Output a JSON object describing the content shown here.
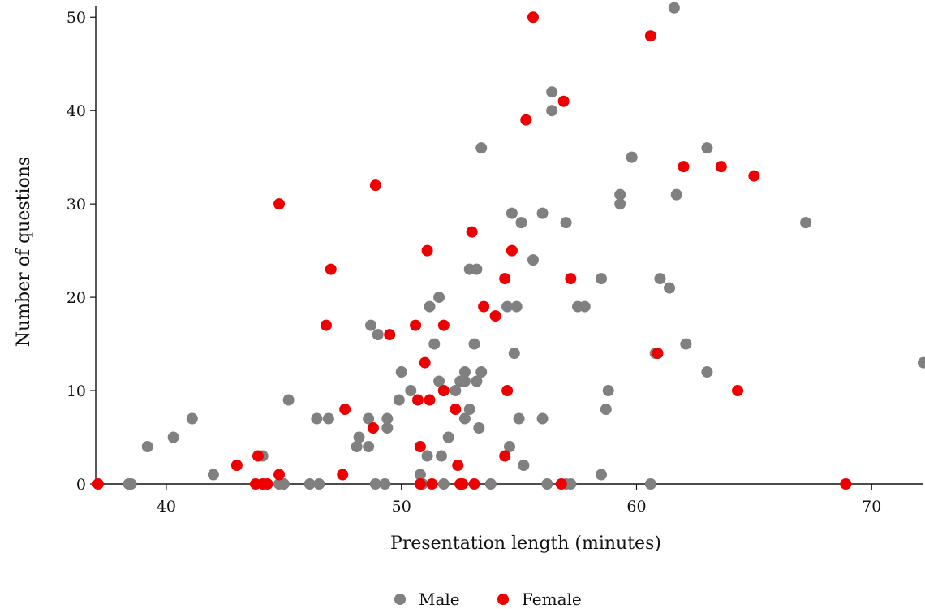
{
  "chart_data": {
    "type": "scatter",
    "xlabel": "Presentation length (minutes)",
    "ylabel": "Number of questions",
    "xlim": [
      37,
      72.2
    ],
    "ylim": [
      0,
      51.5
    ],
    "xticks": [
      "40",
      "50",
      "60",
      "70"
    ],
    "yticks": [
      "0",
      "10",
      "20",
      "30",
      "40",
      "50"
    ],
    "grid": false,
    "legend_position": "bottom-center",
    "series": [
      {
        "name": "Male",
        "color": "#808080",
        "points": [
          [
            38.4,
            0
          ],
          [
            38.5,
            0
          ],
          [
            39.2,
            4
          ],
          [
            40.3,
            5
          ],
          [
            41.1,
            7
          ],
          [
            42.0,
            1
          ],
          [
            44.1,
            3
          ],
          [
            44.8,
            0
          ],
          [
            45.0,
            0
          ],
          [
            45.2,
            9
          ],
          [
            46.1,
            0
          ],
          [
            46.5,
            0
          ],
          [
            46.4,
            7
          ],
          [
            46.9,
            7
          ],
          [
            48.1,
            4
          ],
          [
            48.2,
            5
          ],
          [
            48.6,
            4
          ],
          [
            48.6,
            7
          ],
          [
            48.7,
            17
          ],
          [
            48.9,
            0
          ],
          [
            49.0,
            16
          ],
          [
            49.3,
            0
          ],
          [
            49.4,
            7
          ],
          [
            49.4,
            6
          ],
          [
            49.9,
            9
          ],
          [
            50.0,
            12
          ],
          [
            50.4,
            10
          ],
          [
            50.8,
            1
          ],
          [
            50.9,
            0
          ],
          [
            51.1,
            3
          ],
          [
            51.2,
            19
          ],
          [
            51.4,
            15
          ],
          [
            51.6,
            20
          ],
          [
            51.6,
            11
          ],
          [
            51.7,
            3
          ],
          [
            51.8,
            10
          ],
          [
            51.8,
            0
          ],
          [
            52.0,
            5
          ],
          [
            52.3,
            10
          ],
          [
            52.5,
            11
          ],
          [
            52.7,
            12
          ],
          [
            52.7,
            11
          ],
          [
            52.7,
            7
          ],
          [
            52.9,
            23
          ],
          [
            52.9,
            8
          ],
          [
            53.1,
            15
          ],
          [
            53.2,
            23
          ],
          [
            53.2,
            11
          ],
          [
            53.3,
            6
          ],
          [
            53.4,
            12
          ],
          [
            53.4,
            36
          ],
          [
            53.8,
            0
          ],
          [
            54.5,
            19
          ],
          [
            54.6,
            4
          ],
          [
            54.7,
            29
          ],
          [
            54.8,
            14
          ],
          [
            54.9,
            19
          ],
          [
            55.0,
            7
          ],
          [
            55.1,
            28
          ],
          [
            55.2,
            2
          ],
          [
            55.6,
            24
          ],
          [
            56.0,
            29
          ],
          [
            56.0,
            7
          ],
          [
            56.2,
            0
          ],
          [
            56.4,
            40
          ],
          [
            56.4,
            42
          ],
          [
            57.0,
            28
          ],
          [
            57.0,
            0
          ],
          [
            57.2,
            0
          ],
          [
            57.5,
            19
          ],
          [
            57.8,
            19
          ],
          [
            58.5,
            1
          ],
          [
            58.5,
            22
          ],
          [
            58.7,
            8
          ],
          [
            58.8,
            10
          ],
          [
            59.3,
            31
          ],
          [
            59.3,
            30
          ],
          [
            59.8,
            35
          ],
          [
            60.6,
            0
          ],
          [
            60.8,
            14
          ],
          [
            61.0,
            22
          ],
          [
            61.4,
            21
          ],
          [
            61.6,
            51
          ],
          [
            61.7,
            31
          ],
          [
            62.1,
            15
          ],
          [
            63.0,
            36
          ],
          [
            63.0,
            12
          ],
          [
            67.2,
            28
          ],
          [
            72.2,
            13
          ]
        ]
      },
      {
        "name": "Female",
        "color": "#ee0000",
        "points": [
          [
            37.1,
            0
          ],
          [
            43.0,
            2
          ],
          [
            43.8,
            0
          ],
          [
            43.9,
            3
          ],
          [
            44.1,
            0
          ],
          [
            44.3,
            0
          ],
          [
            44.8,
            1
          ],
          [
            44.8,
            30
          ],
          [
            46.8,
            17
          ],
          [
            47.0,
            23
          ],
          [
            47.5,
            1
          ],
          [
            47.6,
            8
          ],
          [
            48.8,
            6
          ],
          [
            48.9,
            32
          ],
          [
            49.5,
            16
          ],
          [
            50.6,
            17
          ],
          [
            50.7,
            9
          ],
          [
            50.8,
            4
          ],
          [
            50.8,
            0
          ],
          [
            51.0,
            13
          ],
          [
            51.1,
            25
          ],
          [
            51.2,
            9
          ],
          [
            51.3,
            0
          ],
          [
            51.8,
            17
          ],
          [
            51.8,
            10
          ],
          [
            52.3,
            8
          ],
          [
            52.4,
            2
          ],
          [
            52.5,
            0
          ],
          [
            52.6,
            0
          ],
          [
            53.0,
            27
          ],
          [
            53.1,
            0
          ],
          [
            53.5,
            19
          ],
          [
            54.0,
            18
          ],
          [
            54.4,
            22
          ],
          [
            54.4,
            3
          ],
          [
            54.5,
            10
          ],
          [
            54.7,
            25
          ],
          [
            55.3,
            39
          ],
          [
            55.6,
            50
          ],
          [
            56.8,
            0
          ],
          [
            56.9,
            41
          ],
          [
            57.2,
            22
          ],
          [
            60.6,
            48
          ],
          [
            60.9,
            14
          ],
          [
            62.0,
            34
          ],
          [
            63.6,
            34
          ],
          [
            64.3,
            10
          ],
          [
            65.0,
            33
          ],
          [
            68.9,
            0
          ]
        ]
      }
    ]
  }
}
